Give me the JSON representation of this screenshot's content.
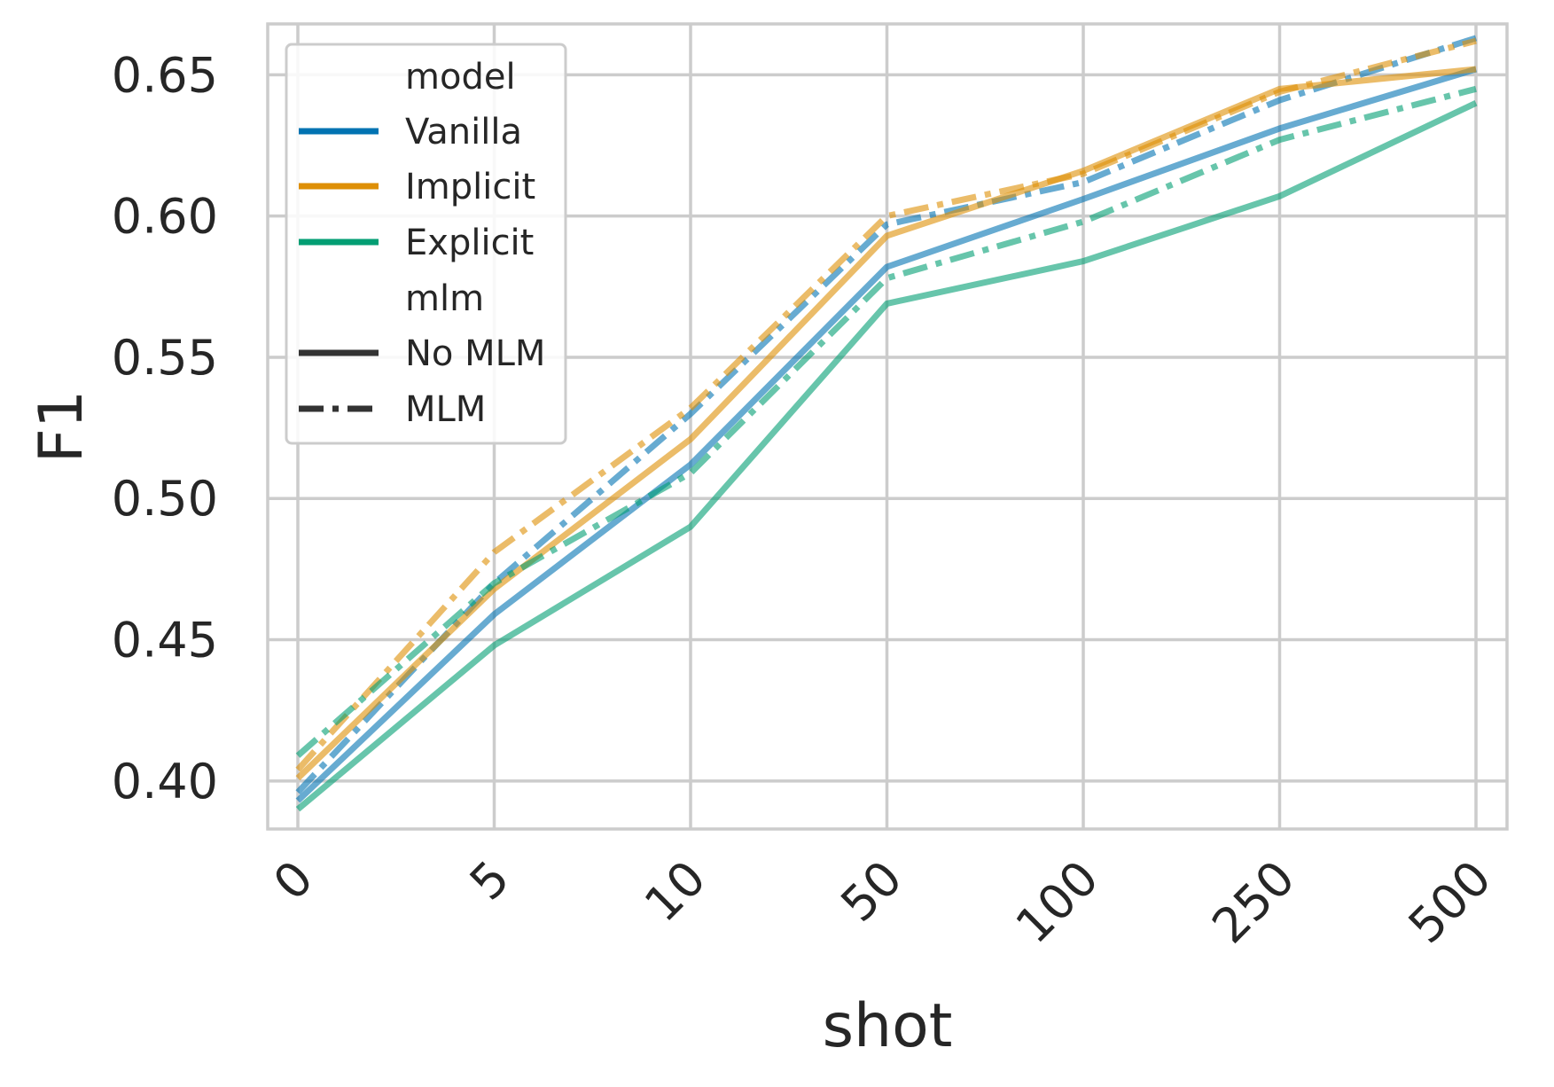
{
  "chart_data": {
    "type": "line",
    "title": "",
    "xlabel": "shot",
    "ylabel": "F1",
    "categories": [
      "0",
      "5",
      "10",
      "50",
      "100",
      "250",
      "500"
    ],
    "yticks": [
      "0.40",
      "0.45",
      "0.50",
      "0.55",
      "0.60",
      "0.65"
    ],
    "ylim": [
      0.383,
      0.668
    ],
    "grid": true,
    "legend_position": "top-left",
    "legend": {
      "model_title": "model",
      "mlm_title": "mlm",
      "models": [
        {
          "name": "Vanilla",
          "color": "#0173b2"
        },
        {
          "name": "Implicit",
          "color": "#de8f05"
        },
        {
          "name": "Explicit",
          "color": "#029e73"
        }
      ],
      "styles": [
        {
          "name": "No MLM",
          "dash": "solid"
        },
        {
          "name": "MLM",
          "dash": "dashdot"
        }
      ]
    },
    "series": [
      {
        "model": "Vanilla",
        "mlm": "No MLM",
        "values": [
          0.393,
          0.459,
          0.512,
          0.582,
          0.606,
          0.631,
          0.652
        ]
      },
      {
        "model": "Vanilla",
        "mlm": "MLM",
        "values": [
          0.396,
          0.47,
          0.53,
          0.597,
          0.612,
          0.641,
          0.663
        ]
      },
      {
        "model": "Implicit",
        "mlm": "No MLM",
        "values": [
          0.401,
          0.468,
          0.521,
          0.593,
          0.616,
          0.645,
          0.652
        ]
      },
      {
        "model": "Implicit",
        "mlm": "MLM",
        "values": [
          0.404,
          0.481,
          0.532,
          0.6,
          0.615,
          0.644,
          0.662
        ]
      },
      {
        "model": "Explicit",
        "mlm": "No MLM",
        "values": [
          0.39,
          0.448,
          0.49,
          0.569,
          0.584,
          0.607,
          0.64
        ]
      },
      {
        "model": "Explicit",
        "mlm": "MLM",
        "values": [
          0.409,
          0.47,
          0.509,
          0.578,
          0.598,
          0.627,
          0.645
        ]
      }
    ]
  }
}
